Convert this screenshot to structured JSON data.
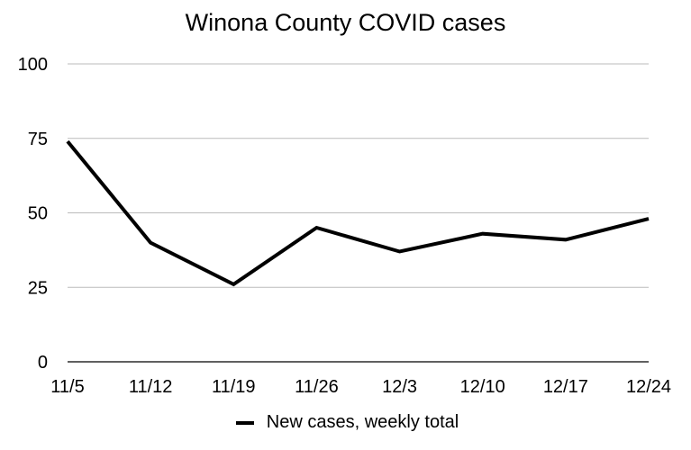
{
  "chart_data": {
    "type": "line",
    "title": "Winona County COVID cases",
    "xlabel": "",
    "ylabel": "",
    "categories": [
      "11/5",
      "11/12",
      "11/19",
      "11/26",
      "12/3",
      "12/10",
      "12/17",
      "12/24"
    ],
    "series": [
      {
        "name": "New cases, weekly total",
        "values": [
          74,
          40,
          26,
          45,
          37,
          43,
          41,
          48
        ],
        "color": "#000000"
      }
    ],
    "ylim": [
      0,
      100
    ],
    "yticks": [
      0,
      25,
      50,
      75,
      100
    ],
    "grid": true,
    "legend_position": "bottom"
  },
  "colors": {
    "line": "#000000",
    "grid": "#bbbbbb",
    "axis": "#000000"
  }
}
